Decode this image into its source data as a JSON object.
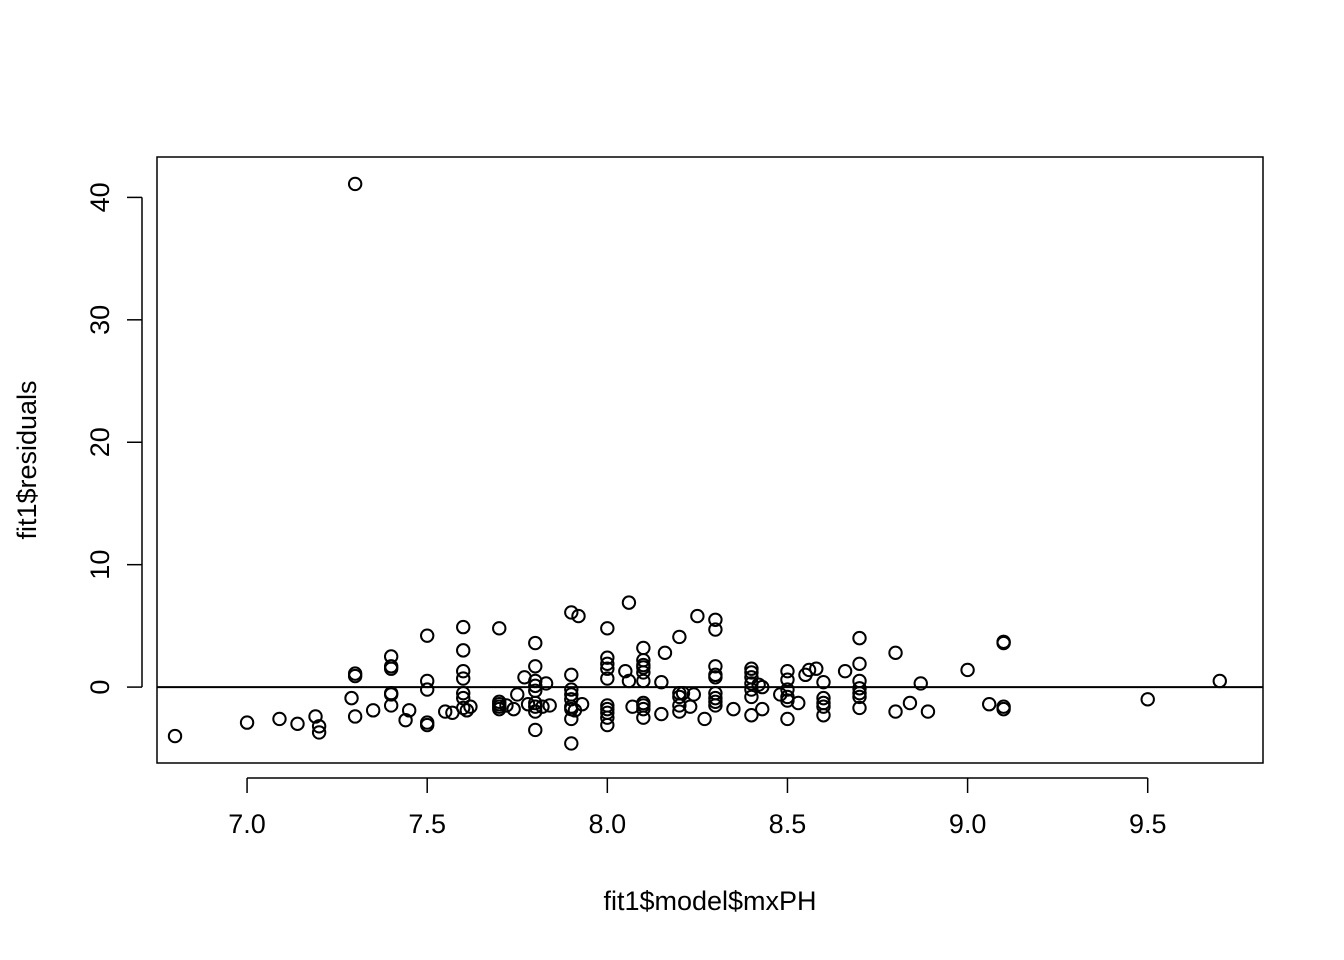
{
  "chart_data": {
    "type": "scatter",
    "title": "",
    "xlabel": "fit1$model$mxPH",
    "ylabel": "fit1$residuals",
    "xlim": [
      6.75,
      9.82
    ],
    "ylim": [
      -6.2,
      43.3
    ],
    "x_ticks": [
      7.0,
      7.5,
      8.0,
      8.5,
      9.0,
      9.5
    ],
    "x_tick_labels": [
      "7.0",
      "7.5",
      "8.0",
      "8.5",
      "9.0",
      "9.5"
    ],
    "y_ticks": [
      0,
      10,
      20,
      30,
      40
    ],
    "y_tick_labels": [
      "0",
      "10",
      "20",
      "30",
      "40"
    ],
    "reference_line_y": 0,
    "grid": false,
    "points": [
      [
        6.8,
        -4.0
      ],
      [
        7.0,
        -2.9
      ],
      [
        7.09,
        -2.6
      ],
      [
        7.14,
        -3.0
      ],
      [
        7.19,
        -2.4
      ],
      [
        7.2,
        -3.2
      ],
      [
        7.2,
        -3.7
      ],
      [
        7.29,
        -0.9
      ],
      [
        7.3,
        41.1
      ],
      [
        7.3,
        0.9
      ],
      [
        7.3,
        1.1
      ],
      [
        7.3,
        -2.4
      ],
      [
        7.35,
        -1.9
      ],
      [
        7.4,
        2.5
      ],
      [
        7.4,
        1.7
      ],
      [
        7.4,
        1.5
      ],
      [
        7.4,
        -0.5
      ],
      [
        7.4,
        -0.6
      ],
      [
        7.4,
        -1.5
      ],
      [
        7.44,
        -2.7
      ],
      [
        7.45,
        -1.9
      ],
      [
        7.5,
        4.2
      ],
      [
        7.5,
        0.5
      ],
      [
        7.5,
        -0.2
      ],
      [
        7.5,
        -2.9
      ],
      [
        7.5,
        -3.1
      ],
      [
        7.55,
        -2.0
      ],
      [
        7.57,
        -2.1
      ],
      [
        7.6,
        4.9
      ],
      [
        7.6,
        3.0
      ],
      [
        7.6,
        1.3
      ],
      [
        7.6,
        0.7
      ],
      [
        7.6,
        -0.5
      ],
      [
        7.6,
        -0.9
      ],
      [
        7.6,
        -1.7
      ],
      [
        7.61,
        -1.9
      ],
      [
        7.62,
        -1.6
      ],
      [
        7.7,
        4.8
      ],
      [
        7.7,
        -1.2
      ],
      [
        7.7,
        -1.4
      ],
      [
        7.7,
        -1.6
      ],
      [
        7.7,
        -1.8
      ],
      [
        7.72,
        -1.5
      ],
      [
        7.74,
        -1.8
      ],
      [
        7.75,
        -0.6
      ],
      [
        7.77,
        0.8
      ],
      [
        7.78,
        -1.4
      ],
      [
        7.8,
        3.6
      ],
      [
        7.8,
        1.7
      ],
      [
        7.8,
        0.5
      ],
      [
        7.8,
        0.1
      ],
      [
        7.8,
        -0.3
      ],
      [
        7.8,
        -1.3
      ],
      [
        7.8,
        -1.6
      ],
      [
        7.8,
        -2.0
      ],
      [
        7.8,
        -3.5
      ],
      [
        7.82,
        -1.6
      ],
      [
        7.83,
        0.3
      ],
      [
        7.84,
        -1.5
      ],
      [
        7.9,
        6.1
      ],
      [
        7.9,
        1.0
      ],
      [
        7.9,
        -0.2
      ],
      [
        7.9,
        -0.6
      ],
      [
        7.9,
        -1.0
      ],
      [
        7.9,
        -1.6
      ],
      [
        7.9,
        -1.8
      ],
      [
        7.9,
        -2.6
      ],
      [
        7.9,
        -4.6
      ],
      [
        7.91,
        -1.9
      ],
      [
        7.92,
        5.8
      ],
      [
        7.93,
        -1.4
      ],
      [
        8.0,
        4.8
      ],
      [
        8.0,
        2.4
      ],
      [
        8.0,
        1.9
      ],
      [
        8.0,
        1.5
      ],
      [
        8.0,
        0.7
      ],
      [
        8.0,
        -1.5
      ],
      [
        8.0,
        -1.8
      ],
      [
        8.0,
        -2.1
      ],
      [
        8.0,
        -2.5
      ],
      [
        8.0,
        -3.1
      ],
      [
        8.05,
        1.3
      ],
      [
        8.06,
        6.9
      ],
      [
        8.06,
        0.5
      ],
      [
        8.07,
        -1.6
      ],
      [
        8.1,
        3.2
      ],
      [
        8.1,
        2.2
      ],
      [
        8.1,
        1.8
      ],
      [
        8.1,
        1.6
      ],
      [
        8.1,
        1.2
      ],
      [
        8.1,
        0.5
      ],
      [
        8.1,
        -1.3
      ],
      [
        8.1,
        -1.5
      ],
      [
        8.1,
        -1.8
      ],
      [
        8.1,
        -2.5
      ],
      [
        8.15,
        0.4
      ],
      [
        8.15,
        -2.2
      ],
      [
        8.16,
        2.8
      ],
      [
        8.2,
        4.1
      ],
      [
        8.2,
        -0.5
      ],
      [
        8.2,
        -0.8
      ],
      [
        8.2,
        -1.5
      ],
      [
        8.2,
        -2.0
      ],
      [
        8.21,
        -0.5
      ],
      [
        8.23,
        -1.6
      ],
      [
        8.24,
        -0.6
      ],
      [
        8.25,
        5.8
      ],
      [
        8.27,
        -2.6
      ],
      [
        8.3,
        5.5
      ],
      [
        8.3,
        4.7
      ],
      [
        8.3,
        1.7
      ],
      [
        8.3,
        1.0
      ],
      [
        8.3,
        0.8
      ],
      [
        8.3,
        -0.5
      ],
      [
        8.3,
        -0.9
      ],
      [
        8.3,
        -1.2
      ],
      [
        8.3,
        -1.5
      ],
      [
        8.35,
        -1.8
      ],
      [
        8.4,
        1.5
      ],
      [
        8.4,
        1.2
      ],
      [
        8.4,
        0.8
      ],
      [
        8.4,
        0.3
      ],
      [
        8.4,
        -0.2
      ],
      [
        8.4,
        -0.8
      ],
      [
        8.4,
        -2.3
      ],
      [
        8.42,
        0.2
      ],
      [
        8.43,
        -1.8
      ],
      [
        8.43,
        0.0
      ],
      [
        8.48,
        -0.6
      ],
      [
        8.5,
        1.3
      ],
      [
        8.5,
        0.6
      ],
      [
        8.5,
        -0.2
      ],
      [
        8.5,
        -0.8
      ],
      [
        8.5,
        -1.1
      ],
      [
        8.5,
        -2.6
      ],
      [
        8.53,
        -1.3
      ],
      [
        8.55,
        1.0
      ],
      [
        8.56,
        1.4
      ],
      [
        8.58,
        1.5
      ],
      [
        8.6,
        0.4
      ],
      [
        8.6,
        -0.9
      ],
      [
        8.6,
        -1.3
      ],
      [
        8.6,
        -1.6
      ],
      [
        8.6,
        -2.3
      ],
      [
        8.66,
        1.3
      ],
      [
        8.7,
        4.0
      ],
      [
        8.7,
        1.9
      ],
      [
        8.7,
        0.5
      ],
      [
        8.7,
        -0.1
      ],
      [
        8.7,
        -0.5
      ],
      [
        8.7,
        -0.8
      ],
      [
        8.7,
        -1.7
      ],
      [
        8.8,
        2.8
      ],
      [
        8.8,
        -2.0
      ],
      [
        8.84,
        -1.3
      ],
      [
        8.87,
        0.3
      ],
      [
        8.89,
        -2.0
      ],
      [
        9.0,
        1.4
      ],
      [
        9.06,
        -1.4
      ],
      [
        9.1,
        3.7
      ],
      [
        9.1,
        3.6
      ],
      [
        9.1,
        -1.6
      ],
      [
        9.1,
        -1.8
      ],
      [
        9.5,
        -1.0
      ],
      [
        9.7,
        0.5
      ]
    ]
  }
}
